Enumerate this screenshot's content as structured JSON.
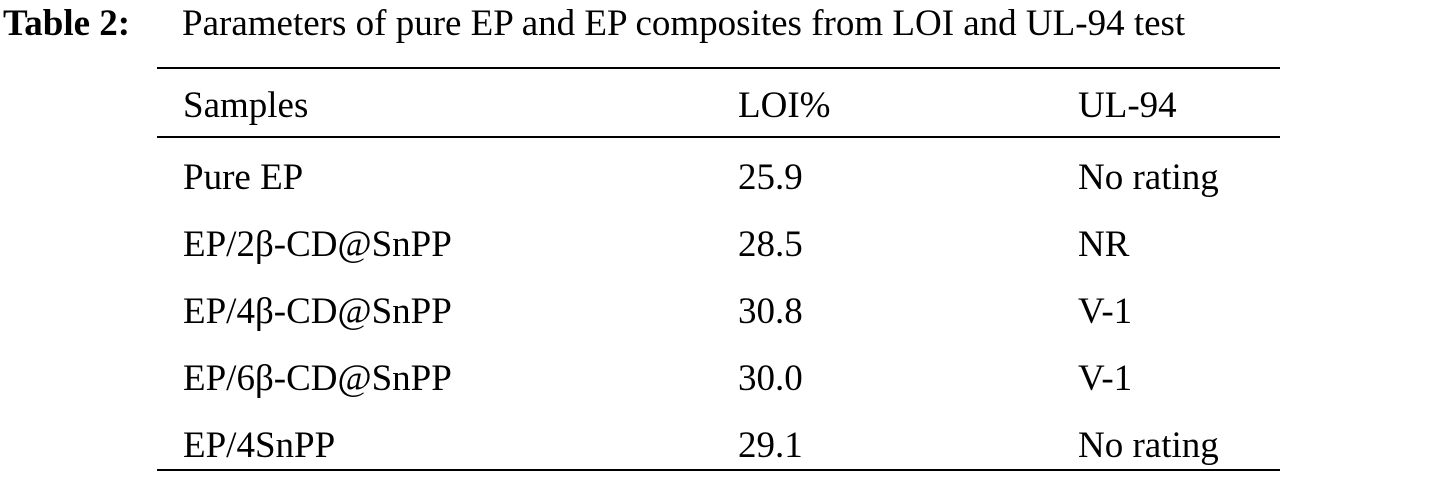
{
  "caption": {
    "label": "Table 2:",
    "text": "Parameters of pure EP and EP composites from LOI and UL-94 test"
  },
  "table": {
    "header": [
      "Samples",
      "LOI%",
      "UL-94"
    ],
    "rows": [
      [
        "Pure EP",
        "25.9",
        "No rating"
      ],
      [
        "EP/2β-CD@SnPP",
        "28.5",
        "NR"
      ],
      [
        "EP/4β-CD@SnPP",
        "30.8",
        "V-1"
      ],
      [
        "EP/6β-CD@SnPP",
        "30.0",
        "V-1"
      ],
      [
        "EP/4SnPP",
        "29.1",
        "No rating"
      ]
    ]
  }
}
